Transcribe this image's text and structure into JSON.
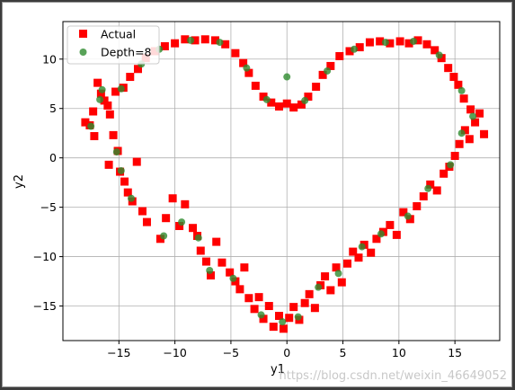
{
  "chart_data": {
    "type": "scatter",
    "title": "",
    "xlabel": "y1",
    "ylabel": "y2",
    "xlim": [
      -20,
      19
    ],
    "ylim": [
      -18.5,
      13.8
    ],
    "xticks": [
      -15,
      -10,
      -5,
      0,
      5,
      10,
      15
    ],
    "yticks": [
      10,
      5,
      0,
      -5,
      -10,
      -15
    ],
    "grid": true,
    "legend_position": "top-left",
    "series": [
      {
        "name": "Actual",
        "marker": "square",
        "color": "#ff0000",
        "points": [
          [
            -18,
            3.6
          ],
          [
            -17.6,
            3.3
          ],
          [
            -17.2,
            2.2
          ],
          [
            -16.9,
            7.6
          ],
          [
            -16.3,
            5.8
          ],
          [
            -15.8,
            4.4
          ],
          [
            -15.5,
            2.3
          ],
          [
            -15.9,
            -0.7
          ],
          [
            -15.1,
            0.7
          ],
          [
            -14.9,
            -1.4
          ],
          [
            -14.5,
            -2.4
          ],
          [
            -14.2,
            -3.5
          ],
          [
            -13.8,
            -4.4
          ],
          [
            -13.4,
            -0.4
          ],
          [
            -12.9,
            -5.4
          ],
          [
            -12.5,
            -6.5
          ],
          [
            -11.3,
            -8.2
          ],
          [
            -10.8,
            -6.1
          ],
          [
            -10.2,
            -4.1
          ],
          [
            -9.6,
            -6.9
          ],
          [
            -9.1,
            -4.7
          ],
          [
            -8.4,
            -7.1
          ],
          [
            -8.0,
            -7.9
          ],
          [
            -7.7,
            -9.4
          ],
          [
            -7.2,
            -10.5
          ],
          [
            -6.8,
            -11.9
          ],
          [
            -6.3,
            -8.5
          ],
          [
            -5.8,
            -10.6
          ],
          [
            -5.1,
            -11.6
          ],
          [
            -4.6,
            -12.5
          ],
          [
            -4.2,
            -13.3
          ],
          [
            -3.8,
            -11.1
          ],
          [
            -3.4,
            -14.2
          ],
          [
            -2.9,
            -15.3
          ],
          [
            -2.5,
            -14.1
          ],
          [
            -2.1,
            -16.3
          ],
          [
            -1.6,
            -15.0
          ],
          [
            -1.2,
            -17.1
          ],
          [
            -0.7,
            -16.0
          ],
          [
            -0.3,
            -17.3
          ],
          [
            0.2,
            -16.2
          ],
          [
            0.6,
            -15.1
          ],
          [
            1.1,
            -16.4
          ],
          [
            1.6,
            -14.7
          ],
          [
            2.0,
            -13.8
          ],
          [
            2.5,
            -15.2
          ],
          [
            3.0,
            -12.9
          ],
          [
            3.4,
            -12.0
          ],
          [
            3.9,
            -13.4
          ],
          [
            4.4,
            -11.1
          ],
          [
            4.9,
            -12.6
          ],
          [
            5.4,
            -10.7
          ],
          [
            5.9,
            -9.5
          ],
          [
            6.4,
            -10.1
          ],
          [
            6.9,
            -8.8
          ],
          [
            7.5,
            -9.6
          ],
          [
            8.0,
            -8.2
          ],
          [
            8.6,
            -7.5
          ],
          [
            9.2,
            -6.8
          ],
          [
            9.8,
            -7.8
          ],
          [
            10.4,
            -5.5
          ],
          [
            11.0,
            -6.2
          ],
          [
            11.6,
            -4.9
          ],
          [
            12.2,
            -3.9
          ],
          [
            12.8,
            -2.7
          ],
          [
            13.4,
            -3.3
          ],
          [
            14.0,
            -1.6
          ],
          [
            14.5,
            -0.9
          ],
          [
            15.0,
            0.2
          ],
          [
            15.4,
            1.4
          ],
          [
            15.9,
            2.8
          ],
          [
            16.3,
            1.9
          ],
          [
            16.8,
            3.6
          ],
          [
            17.2,
            4.5
          ],
          [
            17.6,
            2.4
          ],
          [
            16.4,
            4.9
          ],
          [
            15.8,
            6.0
          ],
          [
            15.3,
            7.4
          ],
          [
            14.9,
            8.2
          ],
          [
            14.4,
            9.1
          ],
          [
            13.8,
            10.1
          ],
          [
            13.2,
            10.9
          ],
          [
            12.5,
            11.5
          ],
          [
            11.7,
            11.9
          ],
          [
            10.9,
            11.6
          ],
          [
            10.1,
            11.8
          ],
          [
            9.2,
            11.6
          ],
          [
            8.3,
            11.8
          ],
          [
            7.4,
            11.7
          ],
          [
            6.5,
            11.2
          ],
          [
            5.6,
            10.8
          ],
          [
            4.7,
            10.3
          ],
          [
            3.9,
            9.3
          ],
          [
            3.2,
            8.4
          ],
          [
            2.6,
            7.2
          ],
          [
            1.9,
            6.2
          ],
          [
            1.3,
            5.4
          ],
          [
            0.6,
            5.1
          ],
          [
            0.0,
            5.5
          ],
          [
            -0.7,
            5.2
          ],
          [
            -1.4,
            5.6
          ],
          [
            -2.1,
            6.2
          ],
          [
            -2.8,
            7.3
          ],
          [
            -3.4,
            8.6
          ],
          [
            -3.9,
            9.6
          ],
          [
            -4.6,
            10.6
          ],
          [
            -5.5,
            11.5
          ],
          [
            -6.4,
            11.9
          ],
          [
            -7.3,
            12.0
          ],
          [
            -8.2,
            11.9
          ],
          [
            -9.1,
            12.0
          ],
          [
            -10.0,
            11.6
          ],
          [
            -10.9,
            11.3
          ],
          [
            -11.8,
            10.8
          ],
          [
            -12.6,
            10.1
          ],
          [
            -13.3,
            9.0
          ],
          [
            -14.0,
            8.2
          ],
          [
            -14.6,
            7.1
          ],
          [
            -15.3,
            6.7
          ],
          [
            -16.0,
            5.3
          ],
          [
            -16.6,
            6.5
          ],
          [
            -17.3,
            4.7
          ]
        ]
      },
      {
        "name": "Depth=8",
        "marker": "circle",
        "color": "#2e8b2e",
        "points": [
          [
            -17.5,
            3.2
          ],
          [
            -16.5,
            6.9
          ],
          [
            -15.2,
            0.6
          ],
          [
            -14.8,
            -1.3
          ],
          [
            -13.9,
            -4.1
          ],
          [
            -11.0,
            -7.9
          ],
          [
            -9.4,
            -6.5
          ],
          [
            -7.9,
            -8.1
          ],
          [
            -6.9,
            -11.4
          ],
          [
            -4.8,
            -12.2
          ],
          [
            -2.3,
            -15.9
          ],
          [
            -0.4,
            -16.6
          ],
          [
            1.0,
            -16.1
          ],
          [
            2.8,
            -13.1
          ],
          [
            4.6,
            -11.7
          ],
          [
            6.7,
            -9.0
          ],
          [
            8.4,
            -7.7
          ],
          [
            10.8,
            -5.9
          ],
          [
            12.6,
            -3.1
          ],
          [
            14.6,
            -0.7
          ],
          [
            15.6,
            2.5
          ],
          [
            16.6,
            4.2
          ],
          [
            15.6,
            6.8
          ],
          [
            13.6,
            10.4
          ],
          [
            11.3,
            11.8
          ],
          [
            8.8,
            11.7
          ],
          [
            6.0,
            11.0
          ],
          [
            3.6,
            8.8
          ],
          [
            1.6,
            5.8
          ],
          [
            0.0,
            8.2
          ],
          [
            -1.8,
            5.9
          ],
          [
            -3.6,
            9.1
          ],
          [
            -6.0,
            11.7
          ],
          [
            -8.6,
            11.9
          ],
          [
            -11.4,
            11.0
          ],
          [
            -13.0,
            9.5
          ],
          [
            -14.8,
            7.0
          ],
          [
            -16.7,
            5.9
          ]
        ]
      }
    ]
  },
  "watermark": "https://blog.csdn.net/weixin_46649052"
}
